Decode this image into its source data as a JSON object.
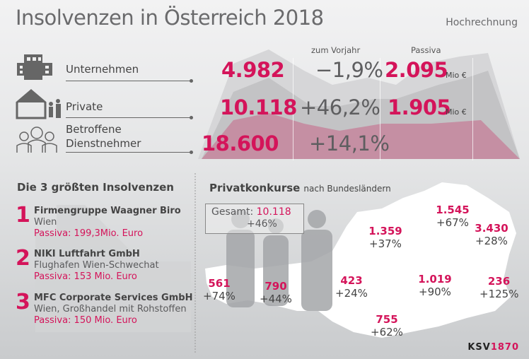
{
  "title": "Insolvenzen in Österreich 2018",
  "subtitle": "Hochrechnung",
  "columns": {
    "vorjahr": "zum Vorjahr",
    "passiva": "Passiva"
  },
  "rows": [
    {
      "icon": "building-icon",
      "label": "Unternehmen",
      "value": "4.982",
      "change": "−1,9%",
      "passiva": "2.095",
      "unit": "Mio €"
    },
    {
      "icon": "house-family-icon",
      "label": "Private",
      "value": "10.118",
      "change": "+46,2%",
      "passiva": "1.905",
      "unit": "Mio €"
    },
    {
      "icon": "people-icon",
      "label": "Betroffene Dienstnehmer",
      "label_line1": "Betroffene",
      "label_line2": "Dienstnehmer",
      "value": "18.600",
      "change": "+14,1%"
    }
  ],
  "top3": {
    "heading": "Die 3 größten Insolvenzen",
    "items": [
      {
        "rank": "1",
        "name": "Firmengruppe Waagner Biro",
        "detail": "Wien",
        "passiva": "Passiva: 199,3Mio. Euro"
      },
      {
        "rank": "2",
        "name": "NIKI Luftfahrt GmbH",
        "detail": "Flughafen Wien-Schwechat",
        "passiva": "Passiva: 153 Mio. Euro"
      },
      {
        "rank": "3",
        "name": "MFC Corporate Services GmbH",
        "detail": "Wien, Großhandel mit Rohstoffen",
        "passiva": "Passiva: 150 Mio. Euro"
      }
    ]
  },
  "map": {
    "heading": "Privatkonkurse",
    "heading_suffix": "nach Bundesländern",
    "total_label": "Gesamt:",
    "total_value": "10.118",
    "total_change": "+46%",
    "regions": [
      {
        "value": "561",
        "change": "+74%"
      },
      {
        "value": "790",
        "change": "+44%"
      },
      {
        "value": "423",
        "change": "+24%"
      },
      {
        "value": "1.359",
        "change": "+37%"
      },
      {
        "value": "1.545",
        "change": "+67%"
      },
      {
        "value": "3.430",
        "change": "+28%"
      },
      {
        "value": "1.019",
        "change": "+90%"
      },
      {
        "value": "236",
        "change": "+125%"
      },
      {
        "value": "755",
        "change": "+62%"
      }
    ]
  },
  "logo": {
    "part1": "KSV",
    "part2": "1870"
  },
  "colors": {
    "accent": "#d4145a",
    "text": "#5a5a5c"
  }
}
